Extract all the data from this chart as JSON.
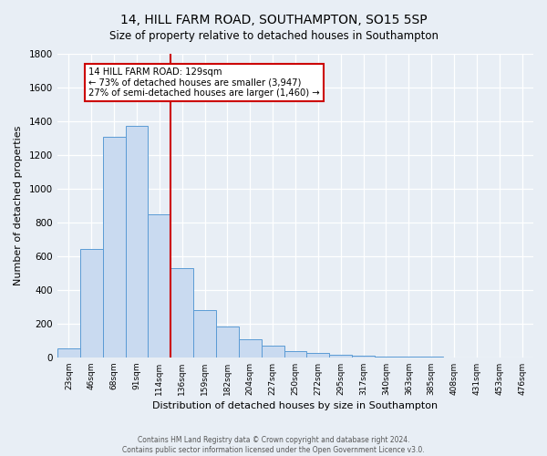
{
  "title": "14, HILL FARM ROAD, SOUTHAMPTON, SO15 5SP",
  "subtitle": "Size of property relative to detached houses in Southampton",
  "xlabel": "Distribution of detached houses by size in Southampton",
  "ylabel": "Number of detached properties",
  "bar_labels": [
    "23sqm",
    "46sqm",
    "68sqm",
    "91sqm",
    "114sqm",
    "136sqm",
    "159sqm",
    "182sqm",
    "204sqm",
    "227sqm",
    "250sqm",
    "272sqm",
    "295sqm",
    "317sqm",
    "340sqm",
    "363sqm",
    "385sqm",
    "408sqm",
    "431sqm",
    "453sqm",
    "476sqm"
  ],
  "bar_values": [
    55,
    645,
    1310,
    1375,
    850,
    530,
    280,
    185,
    108,
    70,
    37,
    25,
    15,
    10,
    6,
    4,
    3,
    1,
    0,
    0,
    0
  ],
  "bar_color": "#c9daf0",
  "bar_edge_color": "#5b9bd5",
  "vline_color": "#cc0000",
  "ylim": [
    0,
    1800
  ],
  "yticks": [
    0,
    200,
    400,
    600,
    800,
    1000,
    1200,
    1400,
    1600,
    1800
  ],
  "annotation_title": "14 HILL FARM ROAD: 129sqm",
  "annotation_line1": "← 73% of detached houses are smaller (3,947)",
  "annotation_line2": "27% of semi-detached houses are larger (1,460) →",
  "annotation_box_color": "#ffffff",
  "annotation_box_edge": "#cc0000",
  "footer_line1": "Contains HM Land Registry data © Crown copyright and database right 2024.",
  "footer_line2": "Contains public sector information licensed under the Open Government Licence v3.0.",
  "background_color": "#e8eef5",
  "plot_bg_color": "#e8eef5",
  "title_fontsize": 10,
  "subtitle_fontsize": 8.5
}
